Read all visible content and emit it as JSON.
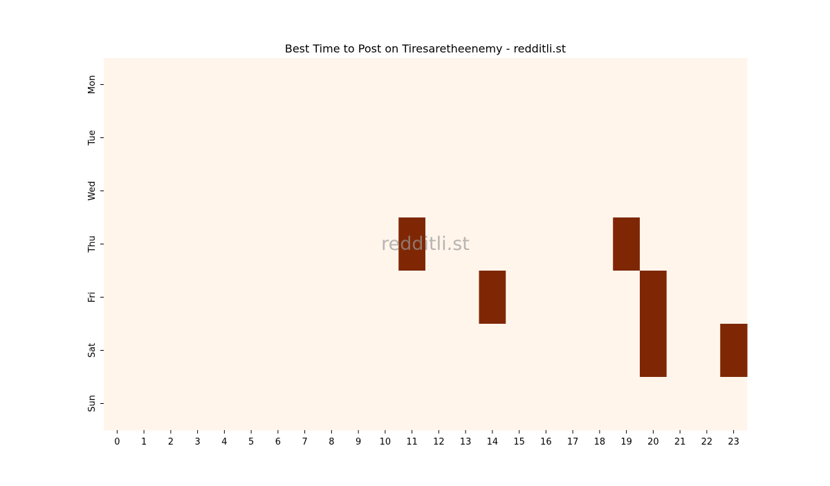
{
  "chart_data": {
    "type": "heatmap",
    "title": "Best Time to Post on Tiresaretheenemy - redditli.st",
    "xlabel": "",
    "ylabel": "",
    "x_categories": [
      "0",
      "1",
      "2",
      "3",
      "4",
      "5",
      "6",
      "7",
      "8",
      "9",
      "10",
      "11",
      "12",
      "13",
      "14",
      "15",
      "16",
      "17",
      "18",
      "19",
      "20",
      "21",
      "22",
      "23"
    ],
    "y_categories": [
      "Mon",
      "Tue",
      "Wed",
      "Thu",
      "Fri",
      "Sat",
      "Sun"
    ],
    "values": [
      [
        0,
        0,
        0,
        0,
        0,
        0,
        0,
        0,
        0,
        0,
        0,
        0,
        0,
        0,
        0,
        0,
        0,
        0,
        0,
        0,
        0,
        0,
        0,
        0
      ],
      [
        0,
        0,
        0,
        0,
        0,
        0,
        0,
        0,
        0,
        0,
        0,
        0,
        0,
        0,
        0,
        0,
        0,
        0,
        0,
        0,
        0,
        0,
        0,
        0
      ],
      [
        0,
        0,
        0,
        0,
        0,
        0,
        0,
        0,
        0,
        0,
        0,
        0,
        0,
        0,
        0,
        0,
        0,
        0,
        0,
        0,
        0,
        0,
        0,
        0
      ],
      [
        0,
        0,
        0,
        0,
        0,
        0,
        0,
        0,
        0,
        0,
        0,
        1,
        0,
        0,
        0,
        0,
        0,
        0,
        0,
        1,
        0,
        0,
        0,
        0
      ],
      [
        0,
        0,
        0,
        0,
        0,
        0,
        0,
        0,
        0,
        0,
        0,
        0,
        0,
        0,
        1,
        0,
        0,
        0,
        0,
        0,
        1,
        0,
        0,
        0
      ],
      [
        0,
        0,
        0,
        0,
        0,
        0,
        0,
        0,
        0,
        0,
        0,
        0,
        0,
        0,
        0,
        0,
        0,
        0,
        0,
        0,
        1,
        0,
        0,
        1
      ],
      [
        0,
        0,
        0,
        0,
        0,
        0,
        0,
        0,
        0,
        0,
        0,
        0,
        0,
        0,
        0,
        0,
        0,
        0,
        0,
        0,
        0,
        0,
        0,
        0
      ]
    ],
    "colors": {
      "low": "#fff5eb",
      "high": "#7f2704"
    },
    "grid": false,
    "legend": "none",
    "watermark": "redditli.st"
  }
}
